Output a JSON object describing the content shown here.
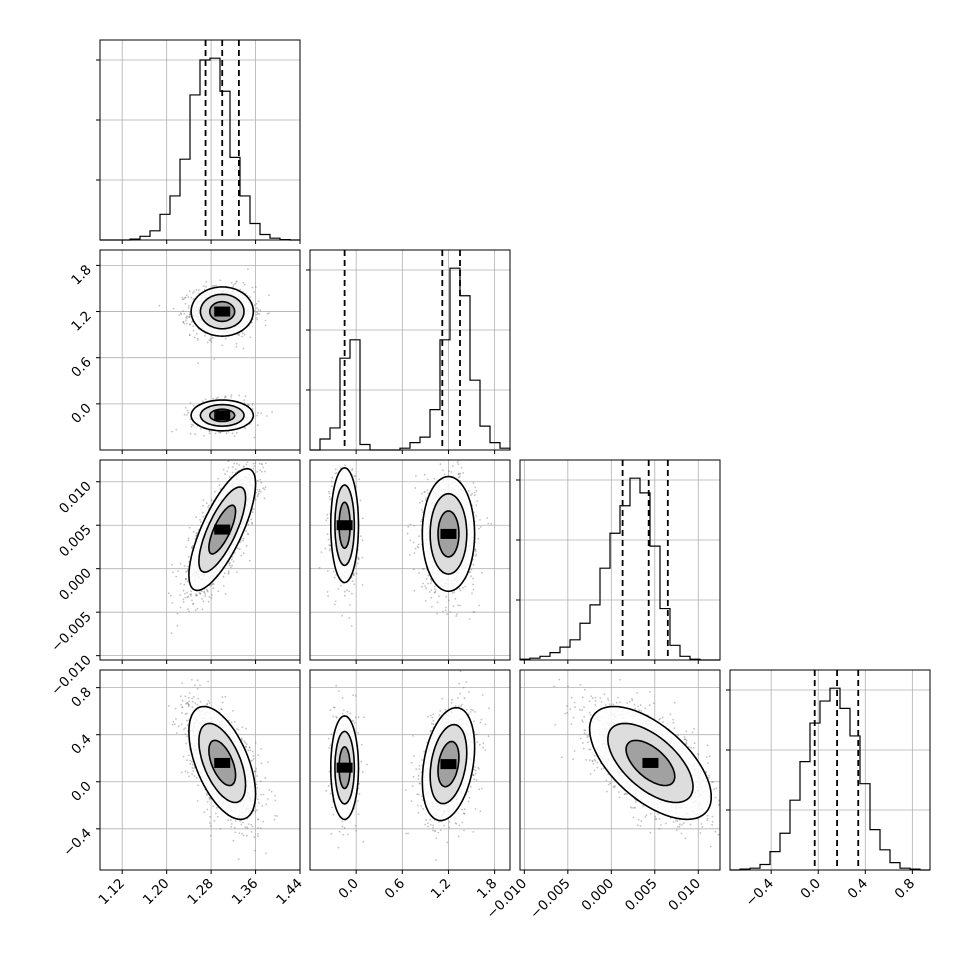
{
  "chart_data": [
    {
      "type": "corner-histogram",
      "panel": "1-1",
      "param_range": [
        1.08,
        1.44
      ],
      "bin_edges": [
        1.08,
        1.098,
        1.116,
        1.134,
        1.152,
        1.17,
        1.188,
        1.206,
        1.224,
        1.242,
        1.26,
        1.278,
        1.296,
        1.314,
        1.332,
        1.35,
        1.368,
        1.386,
        1.404,
        1.422,
        1.44
      ],
      "counts": [
        0,
        0,
        0,
        0.005,
        0.02,
        0.05,
        0.14,
        0.24,
        0.44,
        0.79,
        0.98,
        0.99,
        0.81,
        0.45,
        0.24,
        0.09,
        0.03,
        0.01,
        0.002,
        0
      ],
      "quantiles": [
        1.27,
        1.3,
        1.33
      ],
      "xlim": [
        1.08,
        1.44
      ],
      "grid": true
    },
    {
      "type": "corner-histogram",
      "panel": "2-2",
      "param_range": [
        -0.6,
        2.0
      ],
      "bin_edges": [
        -0.6,
        -0.47,
        -0.34,
        -0.21,
        -0.08,
        0.05,
        0.18,
        0.31,
        0.44,
        0.57,
        0.7,
        0.83,
        0.96,
        1.09,
        1.22,
        1.35,
        1.48,
        1.61,
        1.74,
        1.87,
        2.0
      ],
      "counts": [
        0,
        0.06,
        0.12,
        0.5,
        0.6,
        0.03,
        0,
        0,
        0,
        0.01,
        0.04,
        0.07,
        0.22,
        0.6,
        0.99,
        0.84,
        0.38,
        0.13,
        0.04,
        0.01
      ],
      "quantiles": [
        -0.15,
        1.12,
        1.35
      ],
      "xlim": [
        -0.6,
        2.0
      ],
      "grid": true
    },
    {
      "type": "corner-histogram",
      "panel": "3-3",
      "param_range": [
        -0.0105,
        0.0125
      ],
      "bin_edges": [
        -0.0105,
        -0.00935,
        -0.0082,
        -0.00705,
        -0.0059,
        -0.00475,
        -0.0036,
        -0.00245,
        -0.0013,
        -0.00015,
        0.001,
        0.00215,
        0.0033,
        0.00445,
        0.0056,
        0.00675,
        0.0079,
        0.00905,
        0.0102,
        0.01135,
        0.0125
      ],
      "counts": [
        0.004,
        0.01,
        0.02,
        0.04,
        0.07,
        0.11,
        0.2,
        0.3,
        0.5,
        0.69,
        0.84,
        0.99,
        0.91,
        0.62,
        0.28,
        0.08,
        0.02,
        0.004,
        0,
        0
      ],
      "quantiles": [
        0.0013,
        0.0043,
        0.0065
      ],
      "xlim": [
        -0.0105,
        0.0125
      ],
      "grid": true
    },
    {
      "type": "corner-histogram",
      "panel": "4-4",
      "param_range": [
        -0.75,
        0.95
      ],
      "bin_edges": [
        -0.75,
        -0.665,
        -0.58,
        -0.495,
        -0.41,
        -0.325,
        -0.24,
        -0.155,
        -0.07,
        0.015,
        0.1,
        0.185,
        0.27,
        0.355,
        0.44,
        0.525,
        0.61,
        0.695,
        0.78,
        0.865,
        0.95
      ],
      "counts": [
        0,
        0.005,
        0.01,
        0.03,
        0.1,
        0.2,
        0.38,
        0.59,
        0.8,
        0.92,
        0.99,
        0.88,
        0.73,
        0.47,
        0.22,
        0.11,
        0.04,
        0.01,
        0.005,
        0
      ],
      "quantiles": [
        -0.03,
        0.16,
        0.34
      ],
      "xlim": [
        -0.75,
        0.95
      ],
      "grid": true
    },
    {
      "type": "scatter-density",
      "panel": "2-1",
      "x_param": 1,
      "y_param": 2,
      "xlim": [
        1.08,
        1.44
      ],
      "ylim": [
        -0.6,
        2.0
      ],
      "modes": [
        {
          "center": [
            1.3,
            1.2
          ],
          "sigma": [
            0.028,
            0.16
          ],
          "rho": 0.0,
          "weight": 0.7
        },
        {
          "center": [
            1.3,
            -0.15
          ],
          "sigma": [
            0.028,
            0.1
          ],
          "rho": 0.0,
          "weight": 0.3
        }
      ]
    },
    {
      "type": "scatter-density",
      "panel": "3-1",
      "x_param": 1,
      "y_param": 3,
      "xlim": [
        1.08,
        1.44
      ],
      "ylim": [
        -0.0105,
        0.0125
      ],
      "modes": [
        {
          "center": [
            1.3,
            0.0045
          ],
          "sigma": [
            0.03,
            0.0035
          ],
          "rho": 0.75,
          "weight": 1.0
        }
      ]
    },
    {
      "type": "scatter-density",
      "panel": "3-2",
      "x_param": 2,
      "y_param": 3,
      "xlim": [
        -0.6,
        2.0
      ],
      "ylim": [
        -0.0105,
        0.0125
      ],
      "modes": [
        {
          "center": [
            -0.15,
            0.005
          ],
          "sigma": [
            0.09,
            0.0033
          ],
          "rho": 0.0,
          "weight": 0.3
        },
        {
          "center": [
            1.2,
            0.004
          ],
          "sigma": [
            0.17,
            0.0033
          ],
          "rho": 0.0,
          "weight": 0.7
        }
      ]
    },
    {
      "type": "scatter-density",
      "panel": "4-1",
      "x_param": 1,
      "y_param": 4,
      "xlim": [
        1.08,
        1.44
      ],
      "ylim": [
        -0.75,
        0.95
      ],
      "modes": [
        {
          "center": [
            1.3,
            0.16
          ],
          "sigma": [
            0.03,
            0.24
          ],
          "rho": -0.55,
          "weight": 1.0
        }
      ]
    },
    {
      "type": "scatter-density",
      "panel": "4-2",
      "x_param": 2,
      "y_param": 4,
      "xlim": [
        -0.6,
        2.0
      ],
      "ylim": [
        -0.75,
        0.95
      ],
      "modes": [
        {
          "center": [
            -0.15,
            0.12
          ],
          "sigma": [
            0.09,
            0.22
          ],
          "rho": 0.0,
          "weight": 0.3
        },
        {
          "center": [
            1.2,
            0.15
          ],
          "sigma": [
            0.17,
            0.24
          ],
          "rho": 0.3,
          "weight": 0.7
        }
      ]
    },
    {
      "type": "scatter-density",
      "panel": "4-3",
      "x_param": 3,
      "y_param": 4,
      "xlim": [
        -0.0105,
        0.0125
      ],
      "ylim": [
        -0.75,
        0.95
      ],
      "modes": [
        {
          "center": [
            0.0045,
            0.16
          ],
          "sigma": [
            0.0035,
            0.24
          ],
          "rho": -0.6,
          "weight": 1.0
        }
      ]
    }
  ],
  "axes": {
    "x_ticks": [
      {
        "values": [
          1.12,
          1.2,
          1.28,
          1.36,
          1.44
        ],
        "labels": [
          "1.12",
          "1.20",
          "1.28",
          "1.36",
          "1.44"
        ]
      },
      {
        "values": [
          0.0,
          0.6,
          1.2,
          1.8
        ],
        "labels": [
          "0.0",
          "0.6",
          "1.2",
          "1.8"
        ]
      },
      {
        "values": [
          -0.01,
          -0.005,
          0.0,
          0.005,
          0.01
        ],
        "labels": [
          "−0.010",
          "−0.005",
          "0.000",
          "0.005",
          "0.010"
        ]
      },
      {
        "values": [
          -0.4,
          0.0,
          0.4,
          0.8
        ],
        "labels": [
          "−0.4",
          "0.0",
          "0.4",
          "0.8"
        ]
      }
    ],
    "y_ticks": [
      null,
      {
        "values": [
          0.0,
          0.6,
          1.2,
          1.8
        ],
        "labels": [
          "0.0",
          "0.6",
          "1.2",
          "1.8"
        ]
      },
      {
        "values": [
          -0.01,
          -0.005,
          0.0,
          0.005,
          0.01
        ],
        "labels": [
          "−0.010",
          "−0.005",
          "0.000",
          "0.005",
          "0.010"
        ]
      },
      {
        "values": [
          -0.4,
          0.0,
          0.4,
          0.8
        ],
        "labels": [
          "−0.4",
          "0.0",
          "0.4",
          "0.8"
        ]
      }
    ],
    "tick_label_rotation_deg": 45
  },
  "style": {
    "line_color": "#000000",
    "grid_color": "#b0b0b0",
    "point_color": "#777777",
    "density_dark": "#000000",
    "density_light": "#ffffff"
  }
}
